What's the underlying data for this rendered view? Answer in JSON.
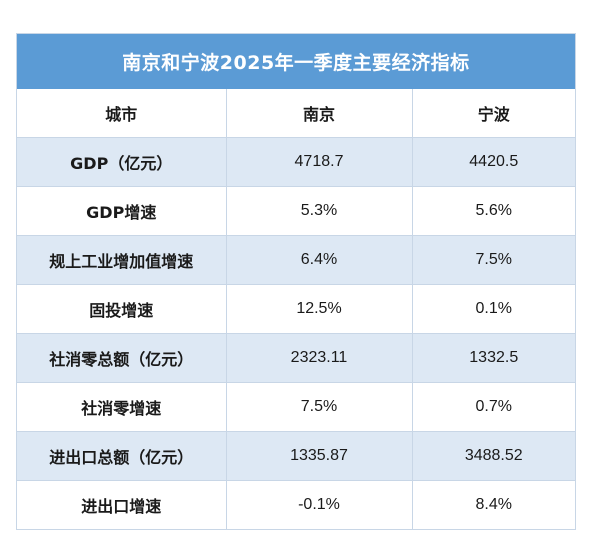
{
  "title": "南京和宁波2025年一季度主要经济指标",
  "headers": [
    "城市",
    "南京",
    "宁波"
  ],
  "rows": [
    {
      "label": "GDP（亿元）",
      "nanjing": "4718.7",
      "ningbo": "4420.5"
    },
    {
      "label": "GDP增速",
      "nanjing": "5.3%",
      "ningbo": "5.6%"
    },
    {
      "label": "规上工业增加值增速",
      "nanjing": "6.4%",
      "ningbo": "7.5%"
    },
    {
      "label": "固投增速",
      "nanjing": "12.5%",
      "ningbo": "0.1%"
    },
    {
      "label": "社消零总额（亿元）",
      "nanjing": "2323.11",
      "ningbo": "1332.5"
    },
    {
      "label": "社消零增速",
      "nanjing": "7.5%",
      "ningbo": "0.7%"
    },
    {
      "label": "进出口总额（亿元）",
      "nanjing": "1335.87",
      "ningbo": "3488.52"
    },
    {
      "label": "进出口增速",
      "nanjing": "-0.1%",
      "ningbo": "8.4%"
    }
  ]
}
